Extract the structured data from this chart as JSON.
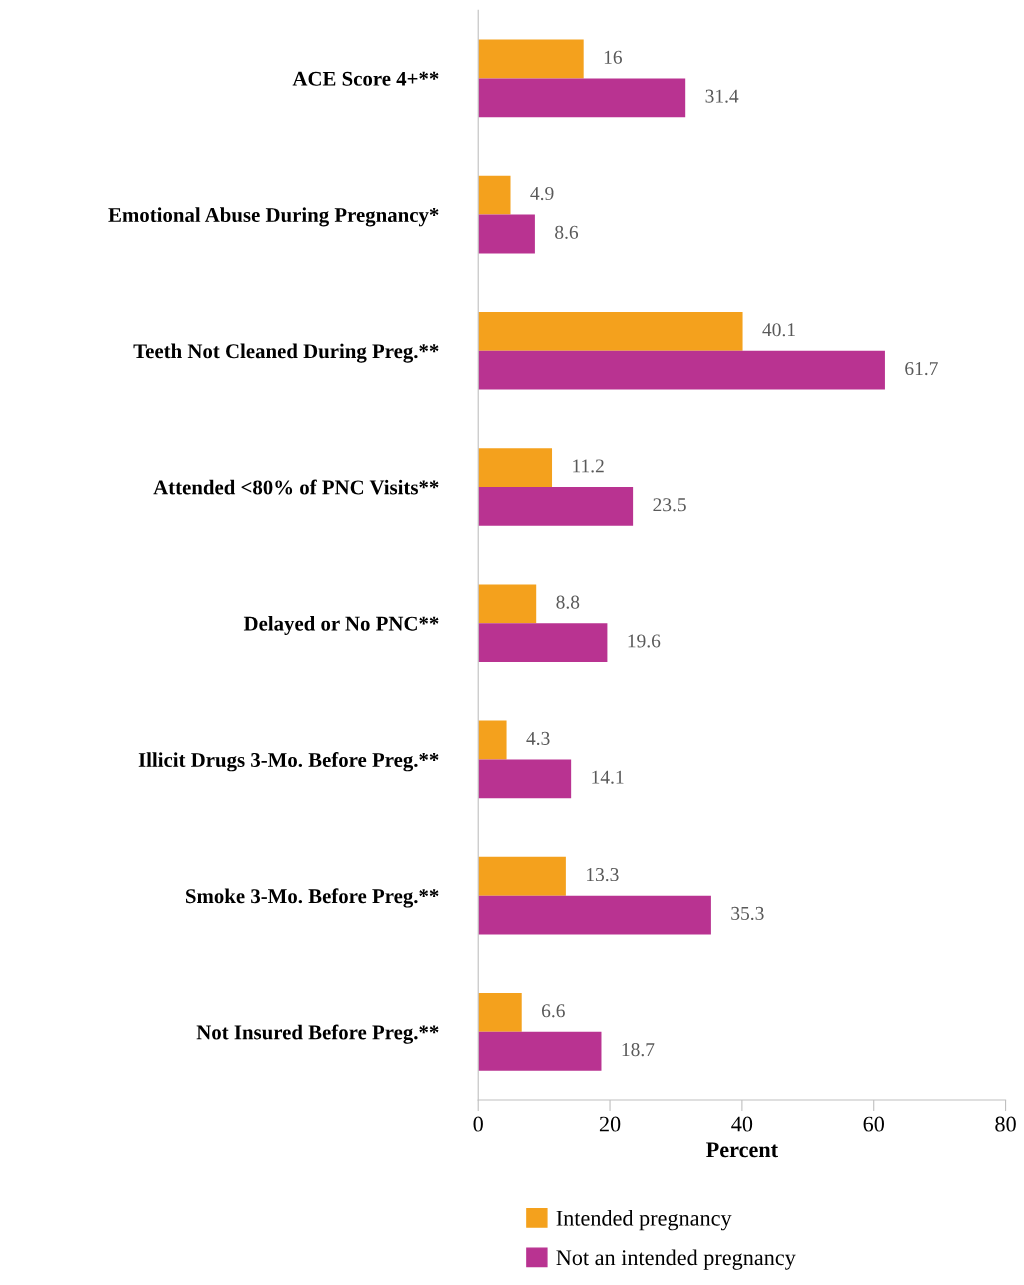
{
  "chart_data": {
    "type": "bar",
    "orientation": "horizontal",
    "xlabel": "Percent",
    "categories": [
      "ACE Score 4+**",
      "Emotional Abuse During Pregnancy*",
      "Teeth Not Cleaned During Preg.**",
      "Attended <80% of PNC Visits**",
      "Delayed or No PNC**",
      "Illicit Drugs 3-Mo. Before Preg.**",
      "Smoke 3-Mo. Before Preg.**",
      "Not Insured Before Preg.**"
    ],
    "series": [
      {
        "name": "Intended pregnancy",
        "color": "#f4a11d",
        "values": [
          16,
          4.9,
          40.1,
          11.2,
          8.8,
          4.3,
          13.3,
          6.6
        ]
      },
      {
        "name": "Not an intended pregnancy",
        "color": "#b93391",
        "values": [
          31.4,
          8.6,
          61.7,
          23.5,
          19.6,
          14.1,
          35.3,
          18.7
        ]
      }
    ],
    "xlim": [
      0,
      80
    ],
    "xticks": [
      0,
      20,
      40,
      60,
      80
    ],
    "data_labels": true,
    "grid": false,
    "legend": "bottom"
  }
}
